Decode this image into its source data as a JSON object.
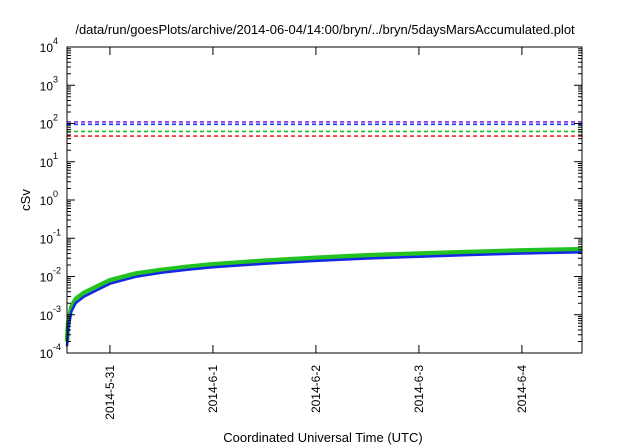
{
  "chart_data": {
    "type": "line",
    "title": "/data/run/goesPlots/archive/2014-06-04/14:00/bryn/../bryn/5daysMarsAccumulated.plot",
    "xlabel": "Coordinated Universal Time (UTC)",
    "ylabel": "cSv",
    "y_scale": "log",
    "ylim": [
      0.0001,
      10000
    ],
    "y_ticks": [
      {
        "value": 0.0001,
        "base": "10",
        "exp": "-4"
      },
      {
        "value": 0.001,
        "base": "10",
        "exp": "-3"
      },
      {
        "value": 0.01,
        "base": "10",
        "exp": "-2"
      },
      {
        "value": 0.1,
        "base": "10",
        "exp": "-1"
      },
      {
        "value": 1,
        "base": "10",
        "exp": "0"
      },
      {
        "value": 10,
        "base": "10",
        "exp": "1"
      },
      {
        "value": 100,
        "base": "10",
        "exp": "2"
      },
      {
        "value": 1000,
        "base": "10",
        "exp": "3"
      },
      {
        "value": 10000,
        "base": "10",
        "exp": "4"
      }
    ],
    "xlim": [
      "2014-05-30 14:00",
      "2014-06-04 14:00"
    ],
    "x_ticks": [
      "2014-5-31",
      "2014-6-1",
      "2014-6-2",
      "2014-6-3",
      "2014-6-4"
    ],
    "grid": false,
    "legend": "none",
    "thresholds": [
      {
        "value": 110,
        "color": "#8a2be2",
        "style": "dashed"
      },
      {
        "value": 95,
        "color": "#1e3cff",
        "style": "dashed"
      },
      {
        "value": 62,
        "color": "#22c222",
        "style": "dashed"
      },
      {
        "value": 47,
        "color": "#ff2020",
        "style": "dashed"
      }
    ],
    "series": [
      {
        "color": "#22c222",
        "x": [
          "2014-05-30 14:00",
          "2014-05-30 14:15",
          "2014-05-30 15:00",
          "2014-05-30 16:00",
          "2014-05-30 18:00",
          "2014-05-30 21:00",
          "2014-05-31 00:00",
          "2014-05-31 06:00",
          "2014-05-31 12:00",
          "2014-05-31 18:00",
          "2014-06-01 00:00",
          "2014-06-01 12:00",
          "2014-06-02 00:00",
          "2014-06-02 12:00",
          "2014-06-03 00:00",
          "2014-06-03 12:00",
          "2014-06-04 00:00",
          "2014-06-04 14:00"
        ],
        "values": [
          0.0002,
          0.0006,
          0.0016,
          0.0026,
          0.0038,
          0.0055,
          0.008,
          0.012,
          0.015,
          0.018,
          0.021,
          0.026,
          0.031,
          0.036,
          0.04,
          0.044,
          0.048,
          0.052
        ]
      },
      {
        "color": "#1428e6",
        "x": [
          "2014-05-30 14:00",
          "2014-05-30 14:15",
          "2014-05-30 15:00",
          "2014-05-30 16:00",
          "2014-05-30 18:00",
          "2014-05-30 21:00",
          "2014-05-31 00:00",
          "2014-05-31 06:00",
          "2014-05-31 12:00",
          "2014-05-31 18:00",
          "2014-06-01 00:00",
          "2014-06-01 12:00",
          "2014-06-02 00:00",
          "2014-06-02 12:00",
          "2014-06-03 00:00",
          "2014-06-03 12:00",
          "2014-06-04 00:00",
          "2014-06-04 14:00"
        ],
        "values": [
          0.00015,
          0.0004,
          0.0012,
          0.002,
          0.003,
          0.0044,
          0.0065,
          0.0098,
          0.0125,
          0.015,
          0.0175,
          0.0215,
          0.0255,
          0.0295,
          0.033,
          0.0365,
          0.04,
          0.043
        ]
      }
    ]
  }
}
